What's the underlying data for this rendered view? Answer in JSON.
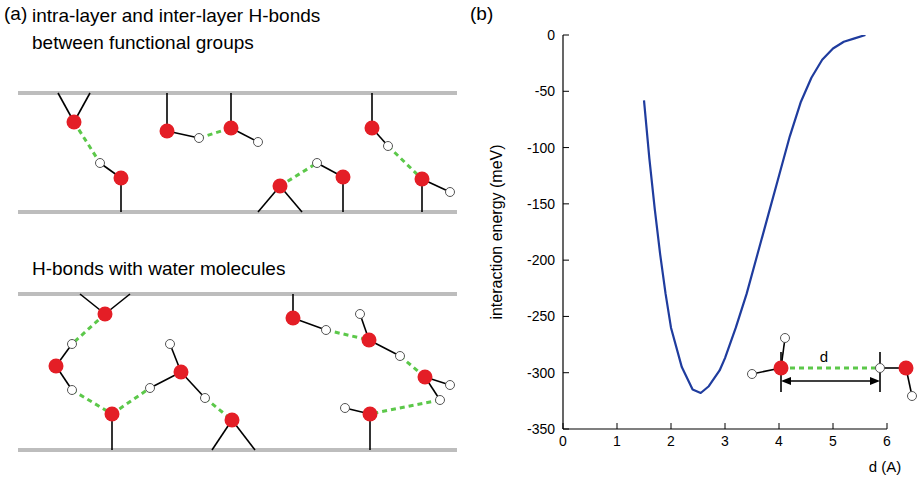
{
  "panel_a": {
    "letter": "(a)",
    "top_title_lines": [
      "intra-layer and inter-layer H-bonds",
      "between functional groups"
    ],
    "bottom_title": "H-bonds with water molecules"
  },
  "chart_data": {
    "letter": "(b)",
    "type": "line",
    "x_label": "d (A)",
    "y_label": "interaction energy (meV)",
    "annotation": "d",
    "x": [
      1.5,
      1.6,
      1.7,
      1.8,
      1.9,
      2.0,
      2.2,
      2.4,
      2.55,
      2.7,
      2.9,
      3.0,
      3.2,
      3.4,
      3.6,
      3.8,
      4.0,
      4.2,
      4.4,
      4.6,
      4.8,
      5.0,
      5.2,
      5.4,
      5.6
    ],
    "series": [
      {
        "color": "#1f3c9e",
        "values": [
          -58,
          -110,
          -155,
          -195,
          -230,
          -260,
          -295,
          -315,
          -318,
          -312,
          -298,
          -287,
          -260,
          -230,
          -195,
          -160,
          -125,
          -90,
          -60,
          -38,
          -22,
          -12,
          -6,
          -3,
          0
        ]
      }
    ],
    "xlim": [
      0,
      6
    ],
    "xticks": [
      0,
      1,
      2,
      3,
      4,
      5,
      6
    ],
    "ylim": [
      -350,
      0
    ],
    "yticks": [
      -350,
      -300,
      -250,
      -200,
      -150,
      -100,
      -50,
      0
    ]
  }
}
